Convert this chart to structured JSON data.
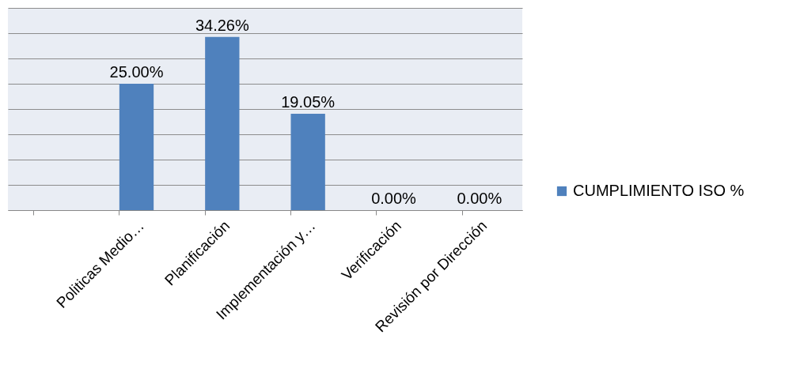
{
  "chart_data": {
    "type": "bar",
    "categories": [
      null,
      "Politicas Medio…",
      "Planificación",
      "Implementación y…",
      "Verificación",
      "Revisión por Dirección"
    ],
    "series": [
      {
        "name": "CUMPLIMIENTO ISO %",
        "color": "#4f81bd",
        "values": [
          null,
          25,
          34.26,
          19.05,
          0,
          0
        ],
        "value_labels": [
          null,
          "25.00%",
          "34.26%",
          "19.05%",
          "0.00%",
          "0.00%"
        ]
      }
    ],
    "ylim": [
      0,
      40
    ],
    "yticks": [
      {
        "value": 0,
        "label": null
      },
      {
        "value": 5,
        "label": null
      },
      {
        "value": 10,
        "label": null
      },
      {
        "value": 15,
        "label": null
      },
      {
        "value": 20,
        "label": null
      },
      {
        "value": 25,
        "label": null
      },
      {
        "value": 30,
        "label": null
      },
      {
        "value": 35,
        "label": null
      },
      {
        "value": 40,
        "label": null
      }
    ],
    "grid": "y",
    "legend": "right",
    "tick_labels": "x"
  }
}
